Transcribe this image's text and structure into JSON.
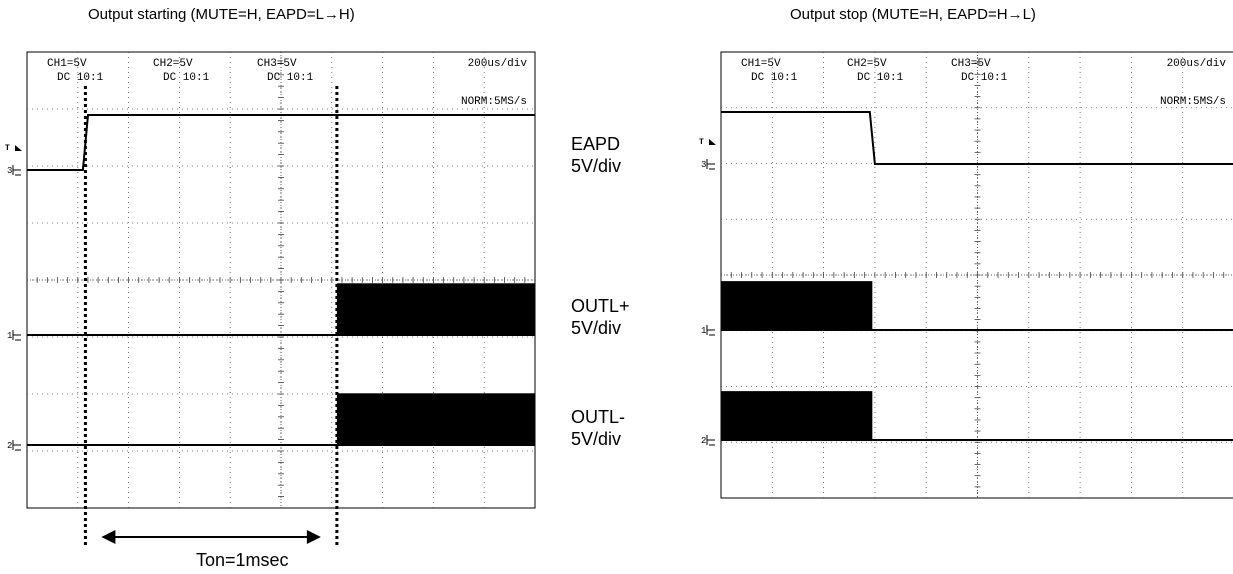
{
  "chart_data": [
    {
      "type": "line",
      "title": "Output starting (MUTE=H, EAPD=L→H)",
      "header": {
        "channels": [
          {
            "name": "CH1=5V",
            "coupling": "DC  10:1"
          },
          {
            "name": "CH2=5V",
            "coupling": "DC  10:1"
          },
          {
            "name": "CH3=5V",
            "coupling": "DC  10:1"
          }
        ],
        "timebase": "200us/div",
        "sample_rate": "NORM:5MS/s"
      },
      "x_unit": "us",
      "xlim": [
        0,
        2000
      ],
      "grid": true,
      "trigger_marker": "T",
      "series": [
        {
          "name": "EAPD",
          "scale": "5V/div",
          "ground_marker": "3",
          "level_divs": [
            0,
            1.0
          ],
          "x": [
            0,
            220,
            240,
            2000
          ],
          "y": [
            0,
            0,
            1.0,
            1.0
          ],
          "noise_burst": null
        },
        {
          "name": "OUTL+",
          "scale": "5V/div",
          "ground_marker": "1",
          "x": [
            0,
            2000
          ],
          "y": [
            0,
            0
          ],
          "noise_burst": {
            "start": 1220,
            "end": 2000,
            "low": 0.01,
            "high": 0.94
          }
        },
        {
          "name": "OUTL-",
          "scale": "5V/div",
          "ground_marker": "2",
          "x": [
            0,
            2000
          ],
          "y": [
            0,
            0
          ],
          "noise_burst": {
            "start": 1220,
            "end": 2000,
            "low": 0.01,
            "high": 0.94
          }
        }
      ],
      "annotations": {
        "markers_x": [
          230,
          1220
        ],
        "arrow_label": "Ton=1msec"
      }
    },
    {
      "type": "line",
      "title": "Output stop (MUTE=H, EAPD=H→L)",
      "header": {
        "channels": [
          {
            "name": "CH1=5V",
            "coupling": "DC  10:1"
          },
          {
            "name": "CH2=5V",
            "coupling": "DC  10:1"
          },
          {
            "name": "CH3=5V",
            "coupling": "DC  10:1"
          }
        ],
        "timebase": "200us/div",
        "sample_rate": "NORM:5MS/s"
      },
      "x_unit": "us",
      "xlim": [
        0,
        2000
      ],
      "grid": true,
      "trigger_marker": "T",
      "series": [
        {
          "name": "EAPD",
          "scale": "5V/div",
          "ground_marker": "3",
          "x": [
            0,
            580,
            600,
            2000
          ],
          "y": [
            1.0,
            1.0,
            0,
            0
          ],
          "noise_burst": null
        },
        {
          "name": "OUTL+",
          "scale": "5V/div",
          "ground_marker": "1",
          "x": [
            0,
            2000
          ],
          "y": [
            0,
            0
          ],
          "noise_burst": {
            "start": 0,
            "end": 590,
            "low": 0.01,
            "high": 0.94
          }
        },
        {
          "name": "OUTL-",
          "scale": "5V/div",
          "ground_marker": "2",
          "x": [
            0,
            2000
          ],
          "y": [
            0,
            0
          ],
          "noise_burst": {
            "start": 0,
            "end": 590,
            "low": 0.01,
            "high": 0.94
          }
        }
      ]
    }
  ],
  "side_labels": [
    {
      "name": "EAPD",
      "scale": "5V/div"
    },
    {
      "name": "OUTL+",
      "scale": "5V/div"
    },
    {
      "name": "OUTL-",
      "scale": "5V/div"
    }
  ]
}
